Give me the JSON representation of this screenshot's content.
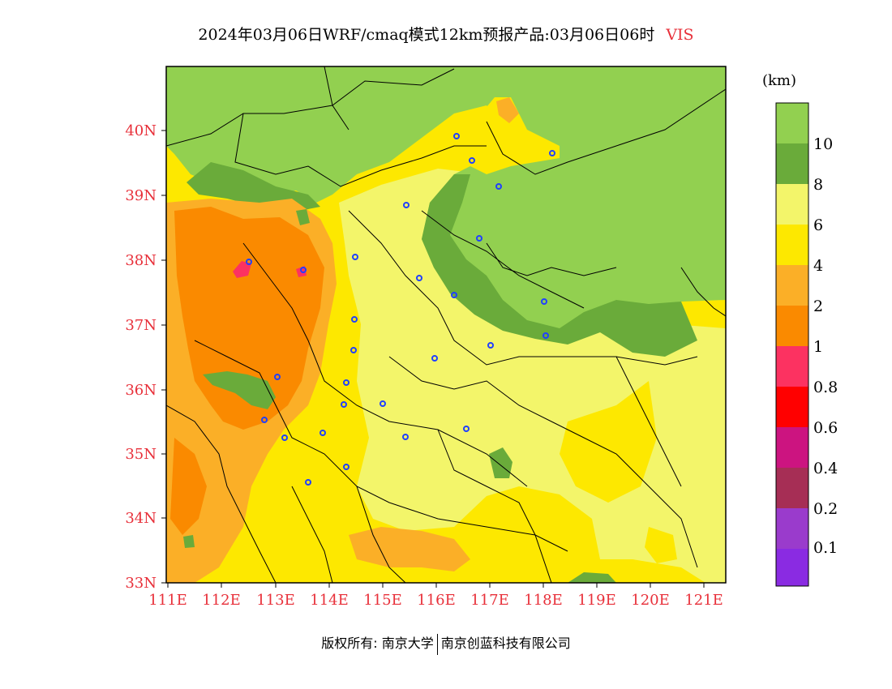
{
  "title": {
    "main": "2024年03月06日WRF/cmaq模式12km预报产品:03月06日06时",
    "variable": "VIS"
  },
  "map": {
    "lat_labels": [
      "40N",
      "39N",
      "38N",
      "37N",
      "36N",
      "35N",
      "34N",
      "33N"
    ],
    "lon_labels": [
      "111E",
      "112E",
      "113E",
      "114E",
      "115E",
      "116E",
      "117E",
      "118E",
      "119E",
      "120E",
      "121E"
    ],
    "colors": {
      "above_10": "#92d050",
      "8_10": "#6aab3a",
      "6_8": "#f3f56a",
      "4_6": "#fde800",
      "2_4": "#fbaf27",
      "1_2": "#fa8a00",
      "0.8_1": "#fc3261",
      "0.6_0.8": "#ff0000",
      "0.4_0.6": "#cc1480",
      "0.2_0.4": "#a62e55",
      "0.1_0.2": "#9a3bcc",
      "below_0.1": "#8a2be2",
      "label_red": "#e8303a",
      "station_blue": "#2040ff"
    }
  },
  "colorbar": {
    "unit": "(km)",
    "labels": [
      "10",
      "8",
      "6",
      "4",
      "2",
      "1",
      "0.8",
      "0.6",
      "0.4",
      "0.2",
      "0.1"
    ]
  },
  "copyright": {
    "left": "版权所有: 南京大学",
    "right": "南京创蓝科技有限公司"
  }
}
